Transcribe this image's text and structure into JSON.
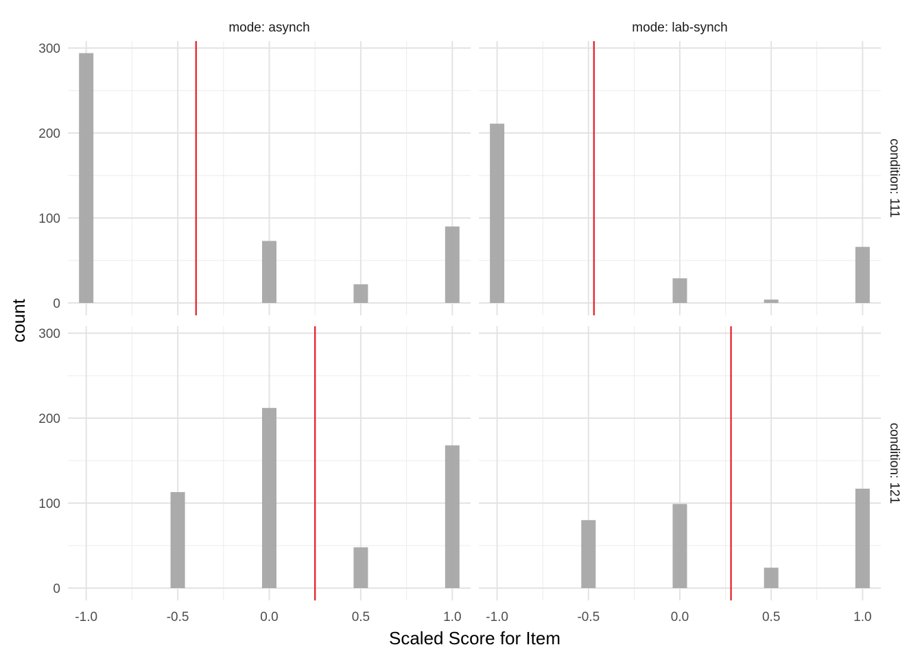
{
  "chart_data": {
    "type": "bar",
    "xlabel": "Scaled Score for Item",
    "ylabel": "count",
    "xlim": [
      -1.1,
      1.1
    ],
    "ylim": [
      0,
      310
    ],
    "x_ticks": [
      "-1.0",
      "-0.5",
      "0.0",
      "0.5",
      "1.0"
    ],
    "y_ticks": [
      "0",
      "100",
      "200",
      "300"
    ],
    "grid": true,
    "bar_color": "#a6a6a6",
    "reference_line_color": "#e8191e",
    "facet_columns": [
      "mode: asynch",
      "mode: lab-synch"
    ],
    "facet_rows": [
      "condition: 111",
      "condition: 121"
    ],
    "panels": [
      {
        "row": 0,
        "col": 0,
        "x": [
          -1.0,
          -0.5,
          0.0,
          0.5,
          1.0
        ],
        "values": [
          294,
          0,
          73,
          22,
          90
        ],
        "reference_line": -0.4
      },
      {
        "row": 0,
        "col": 1,
        "x": [
          -1.0,
          -0.5,
          0.0,
          0.5,
          1.0
        ],
        "values": [
          211,
          0,
          29,
          4,
          66
        ],
        "reference_line": -0.47
      },
      {
        "row": 1,
        "col": 0,
        "x": [
          -1.0,
          -0.5,
          0.0,
          0.5,
          1.0
        ],
        "values": [
          0,
          113,
          212,
          48,
          168
        ],
        "reference_line": 0.25
      },
      {
        "row": 1,
        "col": 1,
        "x": [
          -1.0,
          -0.5,
          0.0,
          0.5,
          1.0
        ],
        "values": [
          0,
          80,
          99,
          24,
          117
        ],
        "reference_line": 0.28
      }
    ]
  }
}
